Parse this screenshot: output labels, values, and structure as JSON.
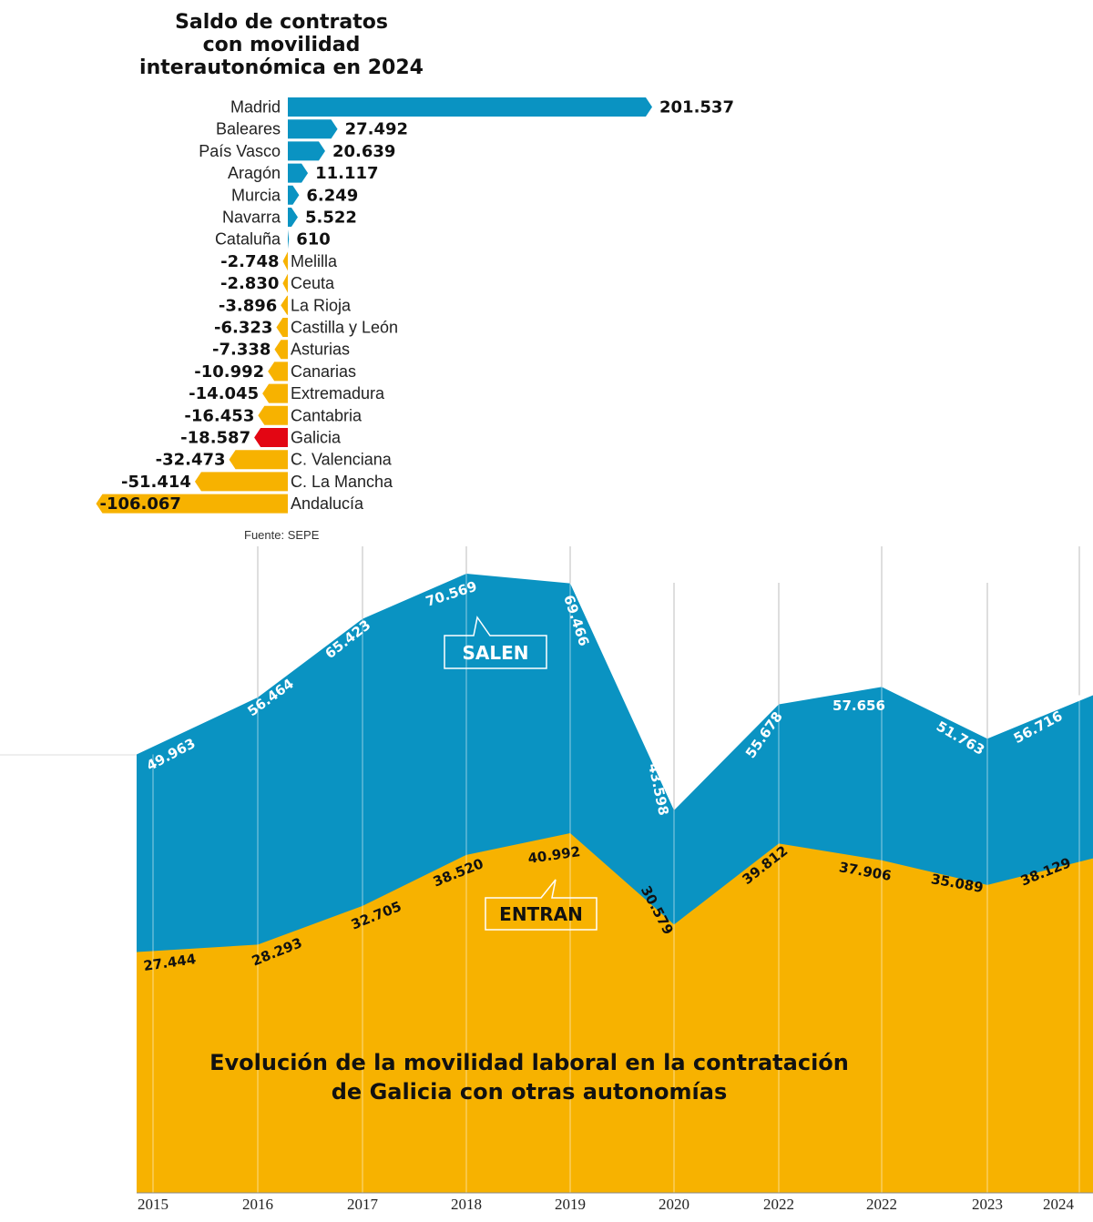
{
  "chart_data": [
    {
      "type": "bar",
      "title": "Saldo de contratos con movilidad interautonómica en 2024",
      "title_lines": [
        "Saldo de contratos",
        "con movilidad",
        "interautonómica en 2024"
      ],
      "categories": [
        "Madrid",
        "Baleares",
        "País Vasco",
        "Aragón",
        "Murcia",
        "Navarra",
        "Cataluña",
        "Melilla",
        "Ceuta",
        "La Rioja",
        "Castilla y León",
        "Asturias",
        "Canarias",
        "Extremadura",
        "Cantabria",
        "Galicia",
        "C. Valenciana",
        "C. La Mancha",
        "Andalucía"
      ],
      "values": [
        201537,
        27492,
        20639,
        11117,
        6249,
        5522,
        610,
        -2748,
        -2830,
        -3896,
        -6323,
        -7338,
        -10992,
        -14045,
        -16453,
        -18587,
        -32473,
        -51414,
        -106067
      ],
      "value_labels": [
        "201.537",
        "27.492",
        "20.639",
        "11.117",
        "6.249",
        "5.522",
        "610",
        "-2.748",
        "-2.830",
        "-3.896",
        "-6.323",
        "-7.338",
        "-10.992",
        "-14.045",
        "-16.453",
        "-18.587",
        "-32.473",
        "-51.414",
        "-106.067"
      ],
      "highlight": "Galicia",
      "colors": {
        "positive": "#0a93c2",
        "negative": "#f7b200",
        "highlight": "#e30613"
      },
      "source": "Fuente: SEPE"
    },
    {
      "type": "area",
      "title": "Evolución de la movilidad laboral en la contratación de Galicia con otras autonomías",
      "title_lines": [
        "Evolución de la movilidad laboral en la contratación",
        "de Galicia con otras autonomías"
      ],
      "x": [
        "2015",
        "2016",
        "2017",
        "2018",
        "2019",
        "2020",
        "2022",
        "2022",
        "2023",
        "2024"
      ],
      "series": [
        {
          "name": "SALEN",
          "values": [
            49963,
            56464,
            65423,
            70569,
            69466,
            43598,
            55678,
            57656,
            51763,
            56716
          ],
          "labels": [
            "49.963",
            "56.464",
            "65.423",
            "70.569",
            "69.466",
            "43.598",
            "55.678",
            "57.656",
            "51.763",
            "56.716"
          ],
          "color": "#0a93c2"
        },
        {
          "name": "ENTRAN",
          "values": [
            27444,
            28293,
            32705,
            38520,
            40992,
            30579,
            39812,
            37906,
            35089,
            38129
          ],
          "labels": [
            "27.444",
            "28.293",
            "32.705",
            "38.520",
            "40.992",
            "30.579",
            "39.812",
            "37.906",
            "35.089",
            "38.129"
          ],
          "color": "#f7b200"
        }
      ],
      "ylim": [
        0,
        75000
      ]
    }
  ]
}
